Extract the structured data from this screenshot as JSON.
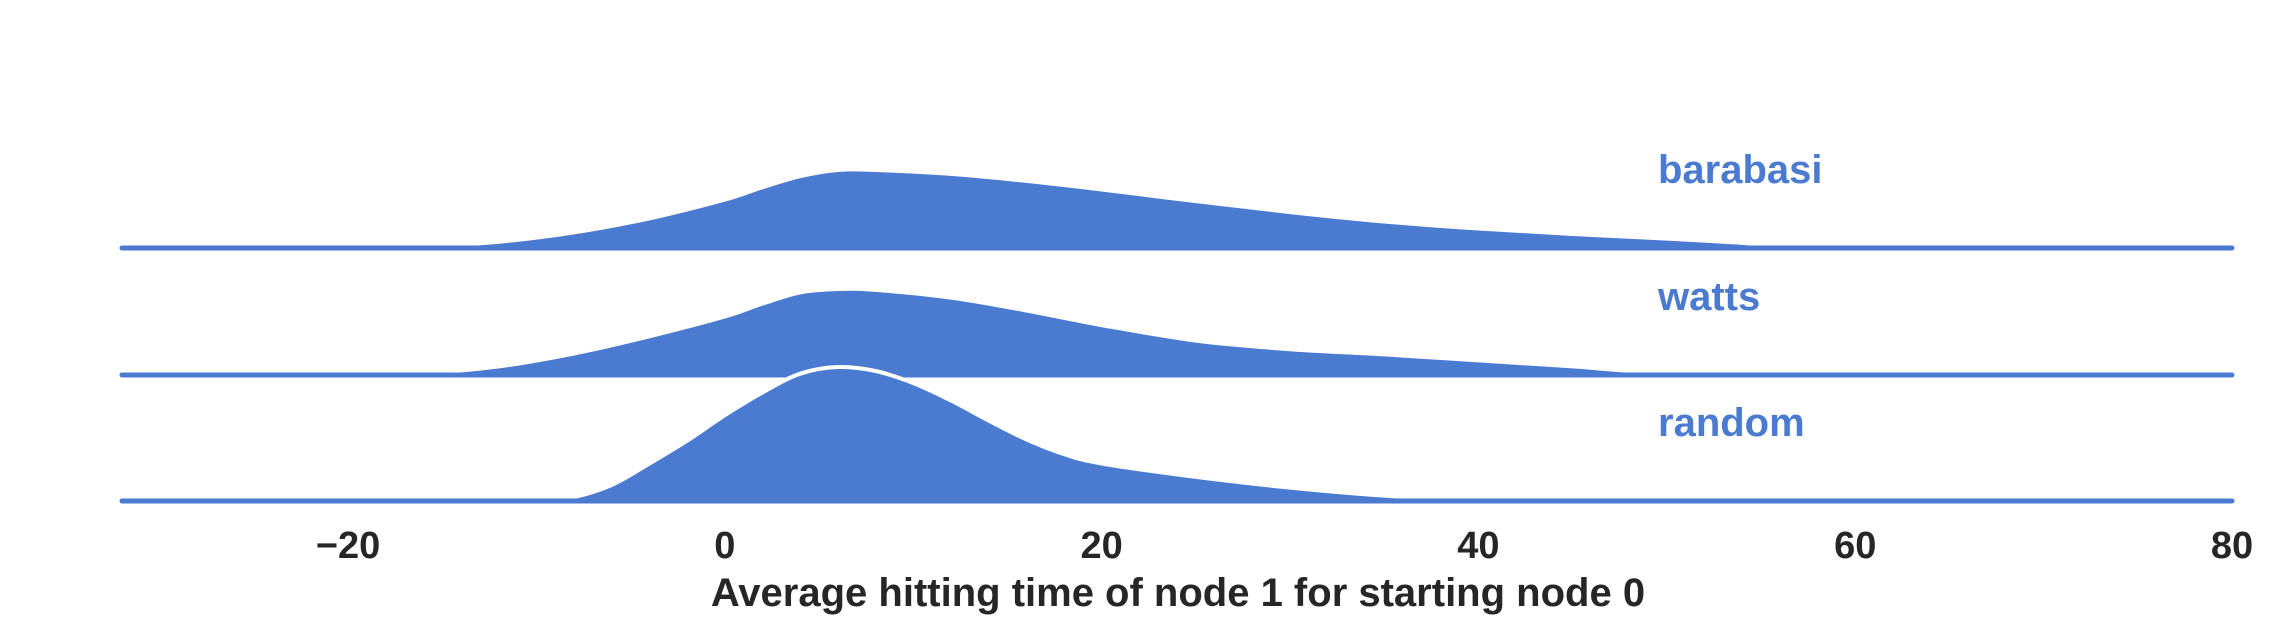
{
  "chart_data": {
    "type": "area",
    "xlabel": "Average hitting time of node 1 for starting node 0",
    "ylabel": "",
    "xlim": [
      -32,
      80
    ],
    "xticks": [
      -20,
      0,
      20,
      40,
      60,
      80
    ],
    "xtick_labels": [
      "−20",
      "0",
      "20",
      "40",
      "60",
      "80"
    ],
    "grid": false,
    "legend": "none",
    "accent_color": "#4a7bd1",
    "series": [
      {
        "name": "barabasi",
        "x": [
          -32,
          -20,
          -16,
          -12,
          -8,
          -4,
          0,
          2,
          4,
          6,
          8,
          12,
          16,
          20,
          25,
          30,
          35,
          40,
          45,
          50,
          53,
          56,
          60,
          65,
          70,
          75,
          80
        ],
        "y": [
          0,
          0,
          0.02,
          0.08,
          0.2,
          0.38,
          0.62,
          0.78,
          0.92,
          1.0,
          1.0,
          0.95,
          0.86,
          0.75,
          0.6,
          0.46,
          0.34,
          0.25,
          0.18,
          0.12,
          0.08,
          0.04,
          0.01,
          0,
          0,
          0,
          0
        ]
      },
      {
        "name": "watts",
        "x": [
          -32,
          -20,
          -16,
          -12,
          -8,
          -4,
          0,
          2,
          4,
          6,
          8,
          12,
          16,
          20,
          25,
          30,
          35,
          40,
          45,
          48,
          52,
          56,
          60,
          65,
          70,
          75,
          80
        ],
        "y": [
          0,
          0,
          0.02,
          0.1,
          0.25,
          0.45,
          0.68,
          0.83,
          0.96,
          1.0,
          0.99,
          0.9,
          0.75,
          0.58,
          0.4,
          0.3,
          0.24,
          0.17,
          0.1,
          0.05,
          0.02,
          0,
          0,
          0,
          0,
          0,
          0
        ]
      },
      {
        "name": "random",
        "x": [
          -32,
          -16,
          -10,
          -8,
          -6,
          -4,
          -2,
          0,
          2,
          4,
          6,
          8,
          10,
          12,
          14,
          16,
          18,
          20,
          25,
          30,
          35,
          40,
          50,
          60,
          70,
          80
        ],
        "y": [
          0,
          0,
          0,
          0.03,
          0.12,
          0.28,
          0.45,
          0.64,
          0.81,
          0.95,
          1.0,
          0.97,
          0.88,
          0.75,
          0.6,
          0.46,
          0.35,
          0.28,
          0.18,
          0.1,
          0.04,
          0.01,
          0,
          0,
          0,
          0
        ]
      }
    ]
  }
}
